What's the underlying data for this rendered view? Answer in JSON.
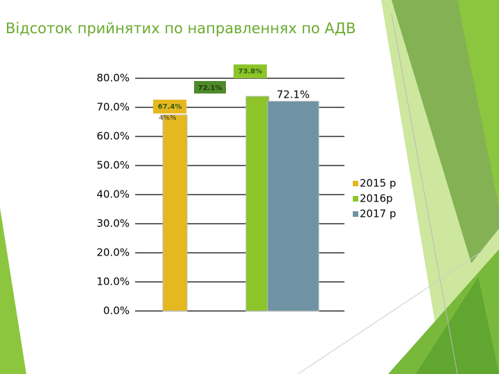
{
  "chart_data": {
    "type": "bar",
    "title": "Відсоток прийнятих по направленнях по АДВ",
    "categories": [
      null
    ],
    "series": [
      {
        "name": "2015 р",
        "color": "#e6b820",
        "values": [
          67.4
        ],
        "value_labels": [
          "67.4%"
        ]
      },
      {
        "name": "2016р",
        "color": "#8cc42a",
        "values": [
          73.8
        ],
        "value_labels": [
          "73.8%"
        ]
      },
      {
        "name": "2017 р",
        "color": "#6f93a3",
        "values": [
          72.1
        ],
        "value_labels": [
          "72.1%"
        ]
      }
    ],
    "annotations": [
      "72.1%",
      "4%%"
    ],
    "ylim": [
      0,
      80
    ],
    "yticks": [
      {
        "value": 0,
        "label": "0.0%"
      },
      {
        "value": 10,
        "label": "10.0%"
      },
      {
        "value": 20,
        "label": "20.0%"
      },
      {
        "value": 30,
        "label": "30.0%"
      },
      {
        "value": 40,
        "label": "40.0%"
      },
      {
        "value": 50,
        "label": "50.0%"
      },
      {
        "value": 60,
        "label": "60.0%"
      },
      {
        "value": 70,
        "label": "70.0%"
      },
      {
        "value": 80,
        "label": "80.0%"
      }
    ],
    "grid": true,
    "legend": "right"
  }
}
